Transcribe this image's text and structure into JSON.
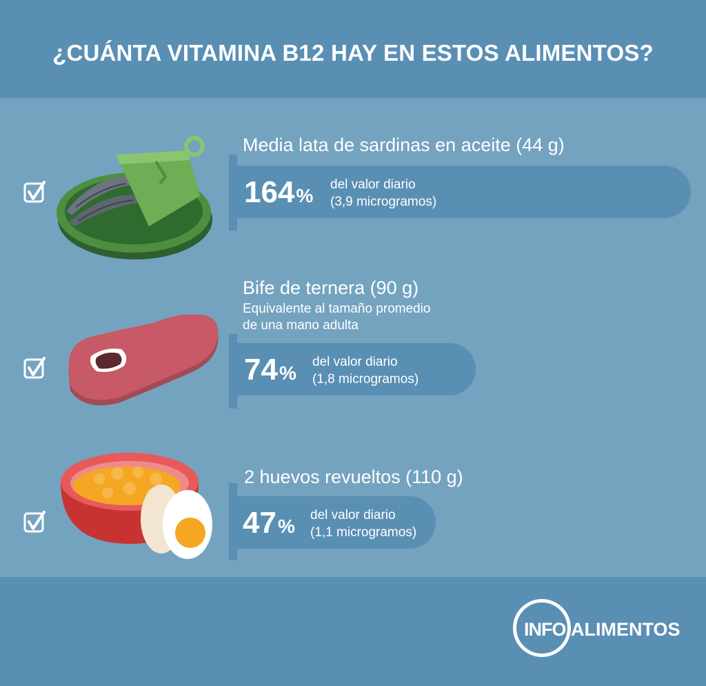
{
  "header": {
    "title": "¿CUÁNTA VITAMINA B12 HAY EN ESTOS ALIMENTOS?"
  },
  "foods": [
    {
      "title": "Media lata de sardinas en aceite (44 g)",
      "subtitle": "",
      "percent": "164",
      "percent_sign": "%",
      "desc1": "del valor diario",
      "desc2": "(3,9 microgramos)",
      "icon": "sardine-can-icon"
    },
    {
      "title": "Bife de ternera (90 g)",
      "subtitle": "Equivalente al tamaño promedio",
      "subtitle2": "de una mano adulta",
      "percent": "74",
      "percent_sign": "%",
      "desc1": "del valor diario",
      "desc2": "(1,8 microgramos)",
      "icon": "steak-icon"
    },
    {
      "title": "2 huevos revueltos (110 g)",
      "subtitle": "",
      "percent": "47",
      "percent_sign": "%",
      "desc1": "del valor diario",
      "desc2": "(1,1 microgramos)",
      "icon": "eggs-bowl-icon"
    }
  ],
  "logo": {
    "info": "INFO",
    "name": "ALIMENTOS"
  },
  "colors": {
    "dark_band": "#5a8fb4",
    "light_band": "#74a3bf",
    "text": "#ffffff"
  }
}
